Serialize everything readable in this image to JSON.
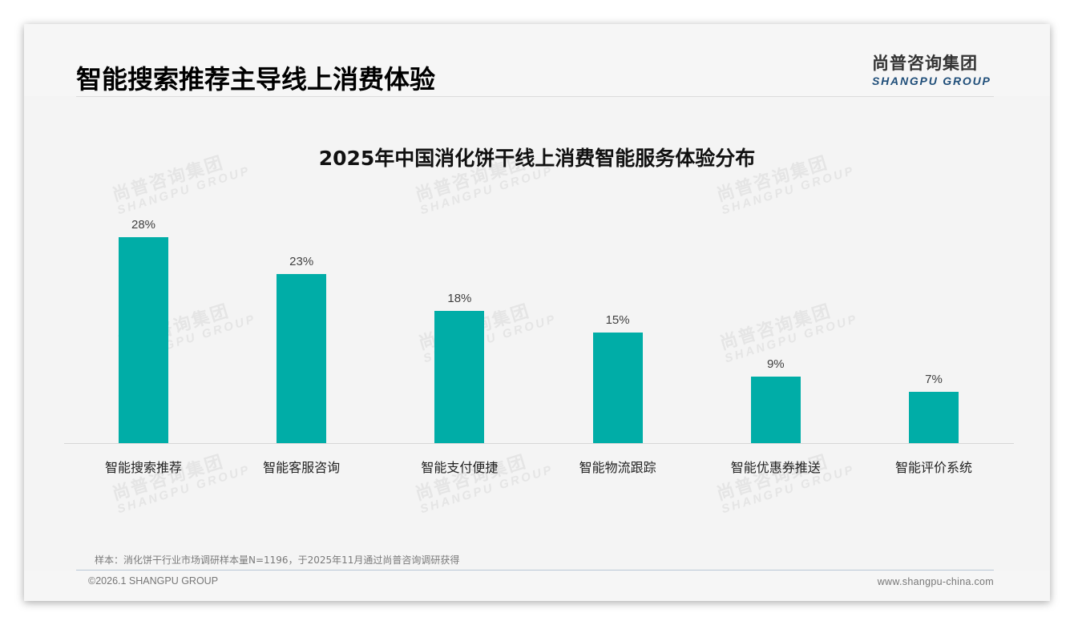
{
  "header": {
    "title": "智能搜索推荐主导线上消费体验",
    "logo_cn": "尚普咨询集团",
    "logo_en": "SHANGPU GROUP"
  },
  "watermark": {
    "cn": "尚普咨询集团",
    "en": "SHANGPU GROUP"
  },
  "colors": {
    "bar": "#00ada7",
    "logo_en": "#1f4e79"
  },
  "chart_data": {
    "type": "bar",
    "title": "2025年中国消化饼干线上消费智能服务体验分布",
    "categories": [
      "智能搜索推荐",
      "智能客服咨询",
      "智能支付便捷",
      "智能物流跟踪",
      "智能优惠券推送",
      "智能评价系统"
    ],
    "values": [
      28,
      23,
      18,
      15,
      9,
      7
    ],
    "value_labels": [
      "28%",
      "23%",
      "18%",
      "15%",
      "9%",
      "7%"
    ],
    "unit": "%",
    "xlabel": "",
    "ylabel": "",
    "ylim": [
      0,
      30
    ],
    "grid": false,
    "legend": null
  },
  "footer": {
    "note": "样本：消化饼干行业市场调研样本量N=1196，于2025年11月通过尚普咨询调研获得",
    "copyright": "©2026.1 SHANGPU GROUP",
    "website": "www.shangpu-china.com"
  }
}
